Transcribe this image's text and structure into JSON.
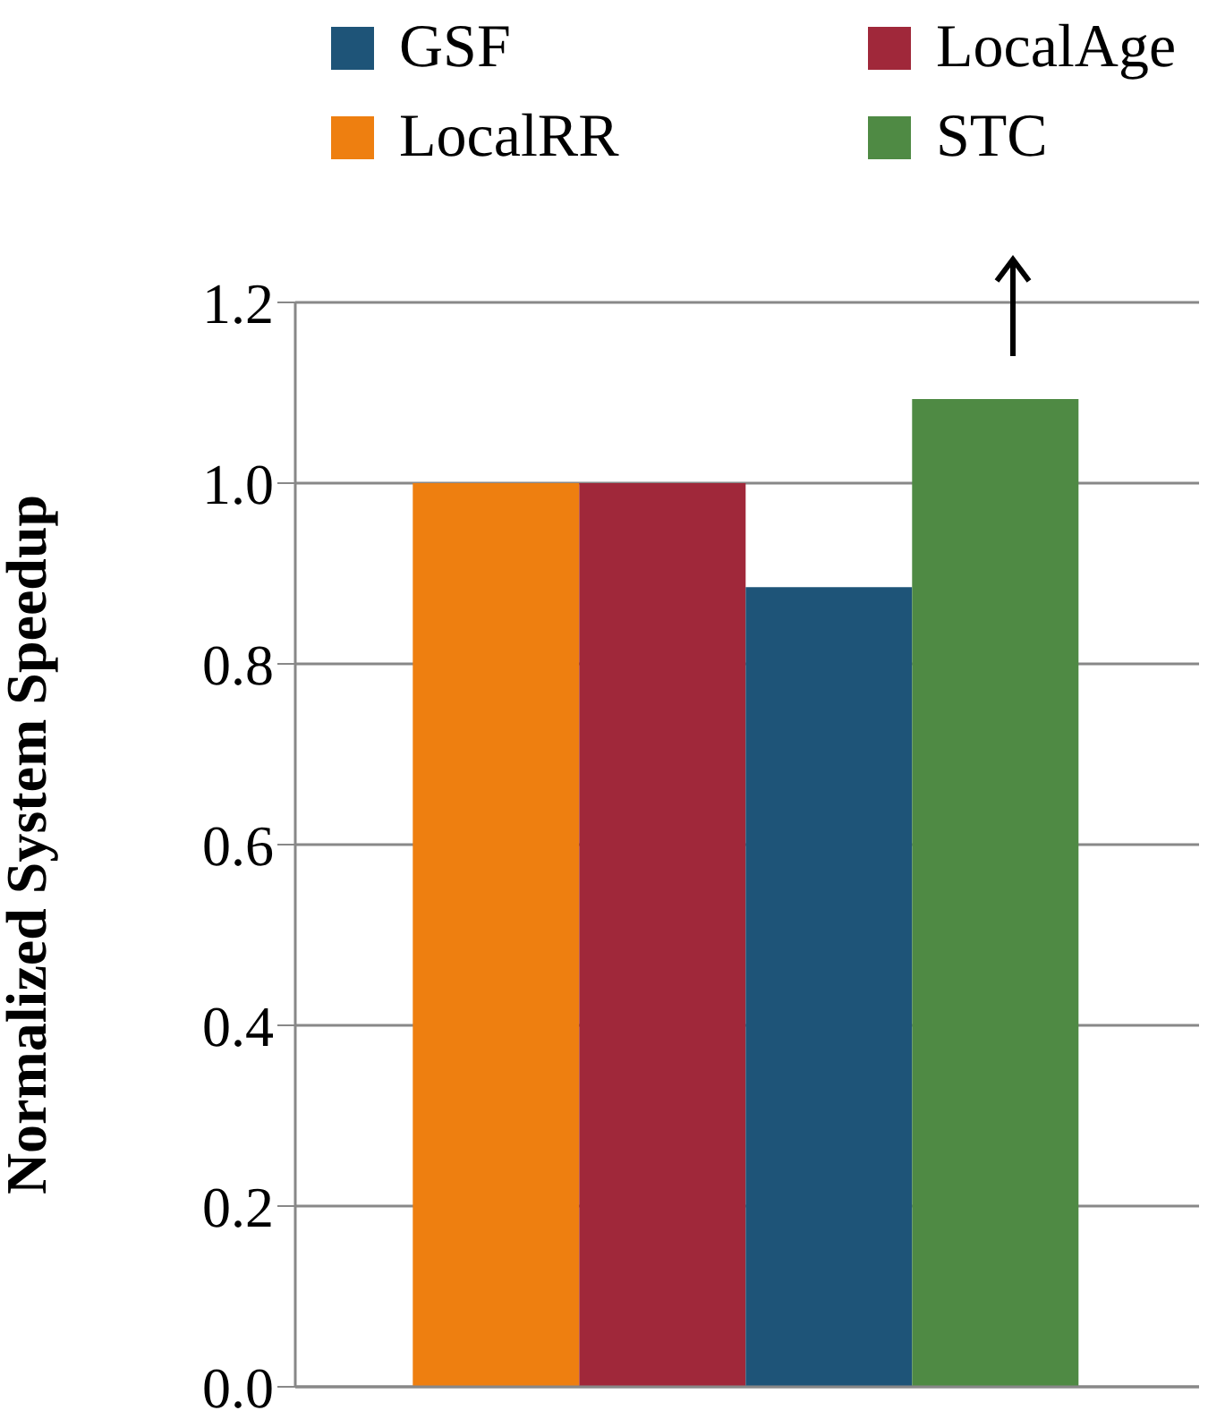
{
  "chart_data": {
    "type": "bar",
    "ylabel": "Normalized  System Speedup",
    "categories": [
      null
    ],
    "series": [
      {
        "name": "LocalRR",
        "color": "#ee7f10",
        "values": [
          1.0
        ]
      },
      {
        "name": "LocalAge",
        "color": "#a0283a",
        "values": [
          1.0
        ]
      },
      {
        "name": "GSF",
        "color": "#1e5478",
        "values": [
          0.885
        ]
      },
      {
        "name": "STC",
        "color": "#4f8a44",
        "values": [
          1.093
        ]
      }
    ],
    "ylim": [
      0,
      1.2
    ],
    "yticks": [
      {
        "value": 0,
        "label": "0.0"
      },
      {
        "value": 0.2,
        "label": "0.2"
      },
      {
        "value": 0.4,
        "label": "0.4"
      },
      {
        "value": 0.6,
        "label": "0.6"
      },
      {
        "value": 0.8,
        "label": "0.8"
      },
      {
        "value": 1,
        "label": "1.0"
      },
      {
        "value": 1.2,
        "label": "1.2"
      }
    ],
    "grid": "y",
    "legend": "top"
  }
}
